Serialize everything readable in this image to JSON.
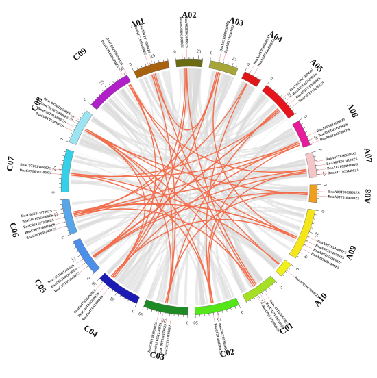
{
  "chart_data": {
    "type": "circos",
    "link_colors": {
      "background": "#d9d9d9",
      "highlight": "#f26b4a"
    },
    "chromosomes": [
      {
        "name": "A01",
        "color": "#a8620f",
        "size": 40,
        "ticks": [
          0,
          25
        ]
      },
      {
        "name": "A02",
        "color": "#6b6b14",
        "size": 30,
        "ticks": [
          0,
          25
        ]
      },
      {
        "name": "A03",
        "color": "#a5a53a",
        "size": 32,
        "ticks": [
          0,
          25
        ]
      },
      {
        "name": "A04",
        "color": "#e01717",
        "size": 20,
        "ticks": [
          0
        ]
      },
      {
        "name": "A05",
        "color": "#e8141c",
        "size": 45,
        "ticks": [
          0,
          25
        ]
      },
      {
        "name": "A06",
        "color": "#e61c9a",
        "size": 30,
        "ticks": [
          0,
          25
        ]
      },
      {
        "name": "A07",
        "color": "#f5c6c8",
        "size": 28,
        "ticks": [
          0,
          25
        ]
      },
      {
        "name": "A08",
        "color": "#f29e1d",
        "size": 20,
        "ticks": [
          0
        ]
      },
      {
        "name": "A09",
        "color": "#f5e61a",
        "size": 58,
        "ticks": [
          0,
          25,
          50
        ]
      },
      {
        "name": "A10",
        "color": "#f0f01a",
        "size": 17,
        "ticks": [
          0
        ]
      },
      {
        "name": "C01",
        "color": "#a5e024",
        "size": 40,
        "ticks": [
          0,
          25
        ]
      },
      {
        "name": "C02",
        "color": "#55e61a",
        "size": 50,
        "ticks": [
          0,
          25,
          50
        ]
      },
      {
        "name": "C03",
        "color": "#1e8a24",
        "size": 50,
        "ticks": [
          0,
          25,
          50
        ]
      },
      {
        "name": "C04",
        "color": "#1c1cb5",
        "size": 50,
        "ticks": [
          0,
          25,
          50
        ]
      },
      {
        "name": "C05",
        "color": "#4d8ee8",
        "size": 42,
        "ticks": [
          0,
          25
        ]
      },
      {
        "name": "C06",
        "color": "#58a5e8",
        "size": 40,
        "ticks": [
          0,
          25
        ]
      },
      {
        "name": "C07",
        "color": "#35d0e8",
        "size": 48,
        "ticks": [
          0,
          25
        ]
      },
      {
        "name": "C08",
        "color": "#9ce4f2",
        "size": 40,
        "ticks": [
          0,
          25
        ]
      },
      {
        "name": "C09",
        "color": "#b020c8",
        "size": 52,
        "ticks": [
          0,
          25,
          50
        ]
      }
    ],
    "genes": [
      {
        "chrom": "A01",
        "pos": 20,
        "labels": [
          "BnaA01T0158400ZS",
          "BnaA01T0158300ZS"
        ]
      },
      {
        "chrom": "A02",
        "pos": 10,
        "labels": [
          "BnaA02T0026600ZS",
          "BnaA02T0026400ZS"
        ]
      },
      {
        "chrom": "A03",
        "pos": 12,
        "labels": [
          "BnaA03T0080500ZS",
          "BnaA03T0036300ZS"
        ]
      },
      {
        "chrom": "A04",
        "pos": 8,
        "labels": [
          "BnaA04T0110500ZS",
          "BnaA04T0104500ZS"
        ]
      },
      {
        "chrom": "A05",
        "pos": 30,
        "labels": [
          "BnaA05T0470600ZS",
          "BnaA05T0476800ZS",
          "BnaA05T0370000ZS",
          "BnaA05T0132400ZS"
        ]
      },
      {
        "chrom": "A06",
        "pos": 24,
        "labels": [
          "BnaA06T0311200ZS",
          "BnaA06T0341700ZS",
          "BnaA06T0437800ZS"
        ]
      },
      {
        "chrom": "A07",
        "pos": 18,
        "labels": [
          "BnaA07T0169200ZS",
          "BnaA07T0174100ZS",
          "BnaA07T0249000ZS",
          "BnaA07T0334400ZS"
        ]
      },
      {
        "chrom": "A08",
        "pos": 10,
        "labels": [
          "BnaA08T0069600ZS",
          "BnaA08T0104000ZS"
        ]
      },
      {
        "chrom": "A09",
        "pos": 38,
        "labels": [
          "BnaA09T0541600ZS",
          "BnaA09T0540500ZS",
          "BnaA09T0509600ZS",
          "BnaA09T0301600ZS"
        ]
      },
      {
        "chrom": "A10",
        "pos": 8,
        "labels": [
          "BnaA10T0172600ZS"
        ]
      },
      {
        "chrom": "C01",
        "pos": 22,
        "labels": [
          "BnaC01T0384700ZS",
          "BnaC01T0396500ZS",
          "BnaC01T0118000ZS"
        ]
      },
      {
        "chrom": "C02",
        "pos": 28,
        "labels": [
          "BnaC02T0528500ZS",
          "BnaC02T0388500ZS"
        ]
      },
      {
        "chrom": "C03",
        "pos": 25,
        "labels": [
          "BnaC03T0331900ZS",
          "BnaC03T0381700ZS",
          "BnaC03T0512200ZS",
          "BnaC03T0439200ZS"
        ]
      },
      {
        "chrom": "C04",
        "pos": 40,
        "labels": [
          "BnaC04T0423900ZS",
          "BnaC04T0412600ZS",
          "BnaC04T0381000ZS"
        ]
      },
      {
        "chrom": "C05",
        "pos": 15,
        "labels": [
          "BnaC05T0150400ZS",
          "BnaC05T0022700ZS",
          "BnaC05T0012600ZS"
        ]
      },
      {
        "chrom": "C06",
        "pos": 20,
        "labels": [
          "BnaC06T0392400ZS",
          "BnaC06T0288600ZS",
          "BnaC06T0273500ZS",
          "BnaC06T0166000ZS",
          "BnaC06T0159700ZS"
        ]
      },
      {
        "chrom": "C07",
        "pos": 22,
        "labels": [
          "BnaC07T0331100ZS",
          "BnaC07T0334000ZS"
        ]
      },
      {
        "chrom": "C08",
        "pos": 20,
        "labels": [
          "BnaC08T0138400ZS",
          "BnaC08T0132800ZS",
          "BnaC08T0104000ZS",
          "BnaC08T0116500ZS"
        ]
      },
      {
        "chrom": "C09",
        "pos": 50,
        "labels": [
          "BnaC09T0586400ZS",
          "BnaC09T0586900ZS"
        ]
      }
    ],
    "links": [
      [
        "C07",
        20,
        "C02",
        28
      ],
      [
        "C08",
        20,
        "C03",
        25
      ],
      [
        "C08",
        22,
        "A09",
        38
      ],
      [
        "C09",
        50,
        "C04",
        40
      ],
      [
        "C09",
        48,
        "A07",
        18
      ],
      [
        "A01",
        20,
        "A03",
        12
      ],
      [
        "A01",
        22,
        "C01",
        22
      ],
      [
        "A01",
        18,
        "C03",
        25
      ],
      [
        "A02",
        10,
        "C05",
        15
      ],
      [
        "A02",
        12,
        "C04",
        40
      ],
      [
        "A03",
        12,
        "C06",
        20
      ],
      [
        "A03",
        14,
        "A09",
        38
      ],
      [
        "A04",
        8,
        "C06",
        22
      ],
      [
        "A04",
        9,
        "C02",
        28
      ],
      [
        "A05",
        30,
        "C05",
        16
      ],
      [
        "A05",
        32,
        "C07",
        20
      ],
      [
        "A05",
        28,
        "C03",
        25
      ],
      [
        "A06",
        24,
        "C07",
        22
      ],
      [
        "A06",
        26,
        "C06",
        20
      ],
      [
        "A06",
        22,
        "C04",
        40
      ],
      [
        "A07",
        18,
        "C06",
        18
      ],
      [
        "A07",
        20,
        "C02",
        28
      ],
      [
        "A08",
        10,
        "C05",
        14
      ],
      [
        "A08",
        12,
        "C08",
        20
      ],
      [
        "A09",
        38,
        "C04",
        42
      ],
      [
        "A09",
        36,
        "C06",
        24
      ],
      [
        "A10",
        8,
        "C07",
        22
      ],
      [
        "A10",
        9,
        "C09",
        50
      ],
      [
        "C01",
        22,
        "C06",
        20
      ],
      [
        "C01",
        24,
        "C08",
        20
      ],
      [
        "C02",
        28,
        "C08",
        22
      ],
      [
        "C03",
        25,
        "C09",
        48
      ],
      [
        "C04",
        40,
        "C08",
        20
      ],
      [
        "C05",
        15,
        "A05",
        30
      ],
      [
        "C06",
        22,
        "A09",
        36
      ],
      [
        "A07",
        22,
        "C05",
        15
      ],
      [
        "A03",
        10,
        "C04",
        38
      ],
      [
        "C02",
        30,
        "A06",
        26
      ],
      [
        "C03",
        27,
        "A08",
        10
      ],
      [
        "C01",
        20,
        "A02",
        12
      ]
    ]
  }
}
